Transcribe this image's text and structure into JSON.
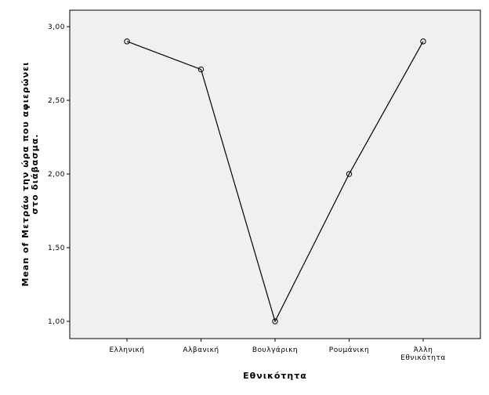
{
  "chart_data": {
    "type": "line",
    "x_label": "Εθνικότητα",
    "y_label": "Mean of Μετράω την ώρα που αφιερώνει στο διάβασμα.",
    "categories": [
      "Ελληνική",
      "Αλβανική",
      "Βουλγάρικη",
      "Ρουμάνικη",
      "Άλλη Εθνικότητα"
    ],
    "values": [
      2.9,
      2.71,
      1.0,
      2.0,
      2.9
    ],
    "color": "#000000",
    "ylim": [
      0.883,
      3.112
    ],
    "yticks": [
      {
        "value": 1,
        "label": "1,00"
      },
      {
        "value": 1.5,
        "label": "1,50"
      },
      {
        "value": 2,
        "label": "2,00"
      },
      {
        "value": 2.5,
        "label": "2,50"
      },
      {
        "value": 3,
        "label": "3,00"
      }
    ]
  }
}
